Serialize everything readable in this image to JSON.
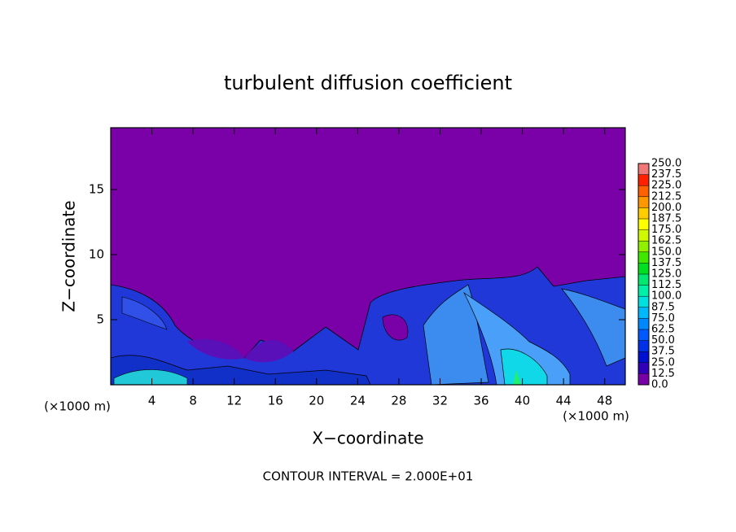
{
  "chart_data": {
    "type": "contour",
    "title": "turbulent diffusion coefficient",
    "x_label": "X−coordinate",
    "y_label": "Z−coordinate",
    "x_unit": "(×1000 m)",
    "y_unit": "(×1000 m)",
    "footer": "CONTOUR INTERVAL = 2.000E+01",
    "xlim": [
      0,
      50
    ],
    "ylim": [
      0,
      19.75
    ],
    "xticks": [
      4,
      8,
      12,
      16,
      20,
      24,
      28,
      32,
      36,
      40,
      44,
      48
    ],
    "yticks": [
      5,
      10,
      15
    ],
    "colorbar": {
      "levels": [
        {
          "value": 0,
          "label": "0.0"
        },
        12.5,
        {
          "value": 25,
          "label": "25.0"
        },
        37.5,
        {
          "value": 50,
          "label": "50.0"
        },
        62.5,
        {
          "value": 75,
          "label": "75.0"
        },
        87.5,
        {
          "value": 100,
          "label": "100.0"
        },
        112.5,
        {
          "value": 125,
          "label": "125.0"
        },
        137.5,
        {
          "value": 150,
          "label": "150.0"
        },
        162.5,
        {
          "value": 175,
          "label": "175.0"
        },
        187.5,
        {
          "value": 200,
          "label": "200.0"
        },
        212.5,
        {
          "value": 225,
          "label": "225.0"
        },
        237.5,
        {
          "value": 250,
          "label": "250.0"
        }
      ],
      "colors": [
        "#7a00a8",
        "#3000b8",
        "#0010d0",
        "#0030e8",
        "#0058ff",
        "#0088ff",
        "#00b8ff",
        "#00e0e0",
        "#00f0a8",
        "#00e870",
        "#00e020",
        "#40e800",
        "#90f000",
        "#d0f800",
        "#ffff00",
        "#ffcc00",
        "#ff9800",
        "#ff6000",
        "#ff2000",
        "#f07878"
      ]
    }
  }
}
